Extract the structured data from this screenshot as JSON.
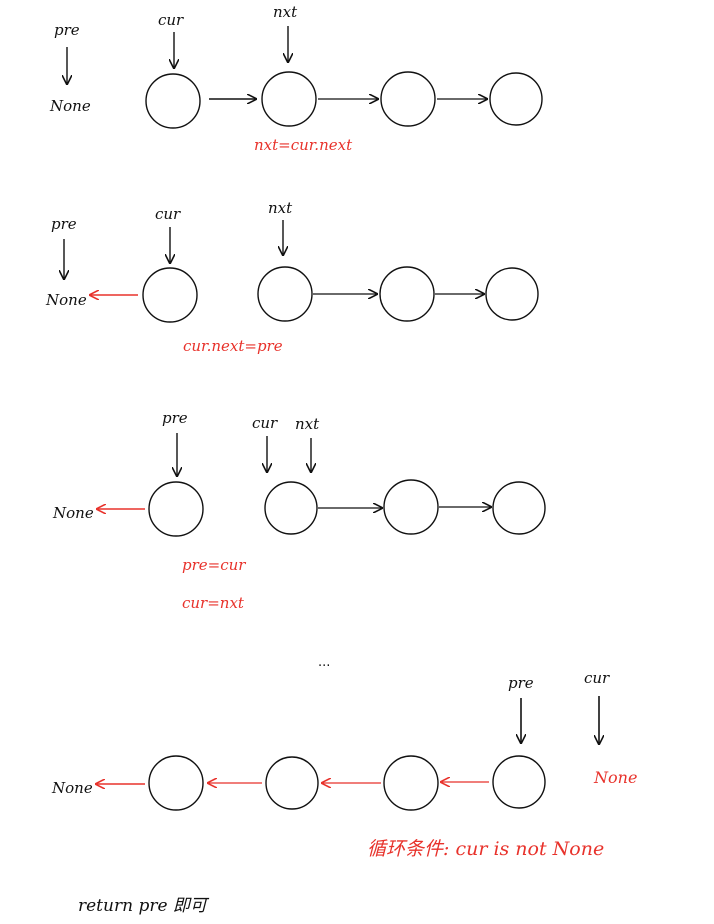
{
  "colors": {
    "ink": "#111111",
    "red": "#e8322b"
  },
  "labels": {
    "pre": "pre",
    "cur": "cur",
    "nxt": "nxt",
    "none": "None"
  },
  "step1": {
    "note": "nxt=cur.next"
  },
  "step2": {
    "note": "cur.next=pre"
  },
  "step3": {
    "note1": "pre=cur",
    "note2": "cur=nxt"
  },
  "ellipsis": "...",
  "step4": {
    "condition": "循环条件: cur is not None"
  },
  "footer": {
    "result": "return pre 即可"
  }
}
